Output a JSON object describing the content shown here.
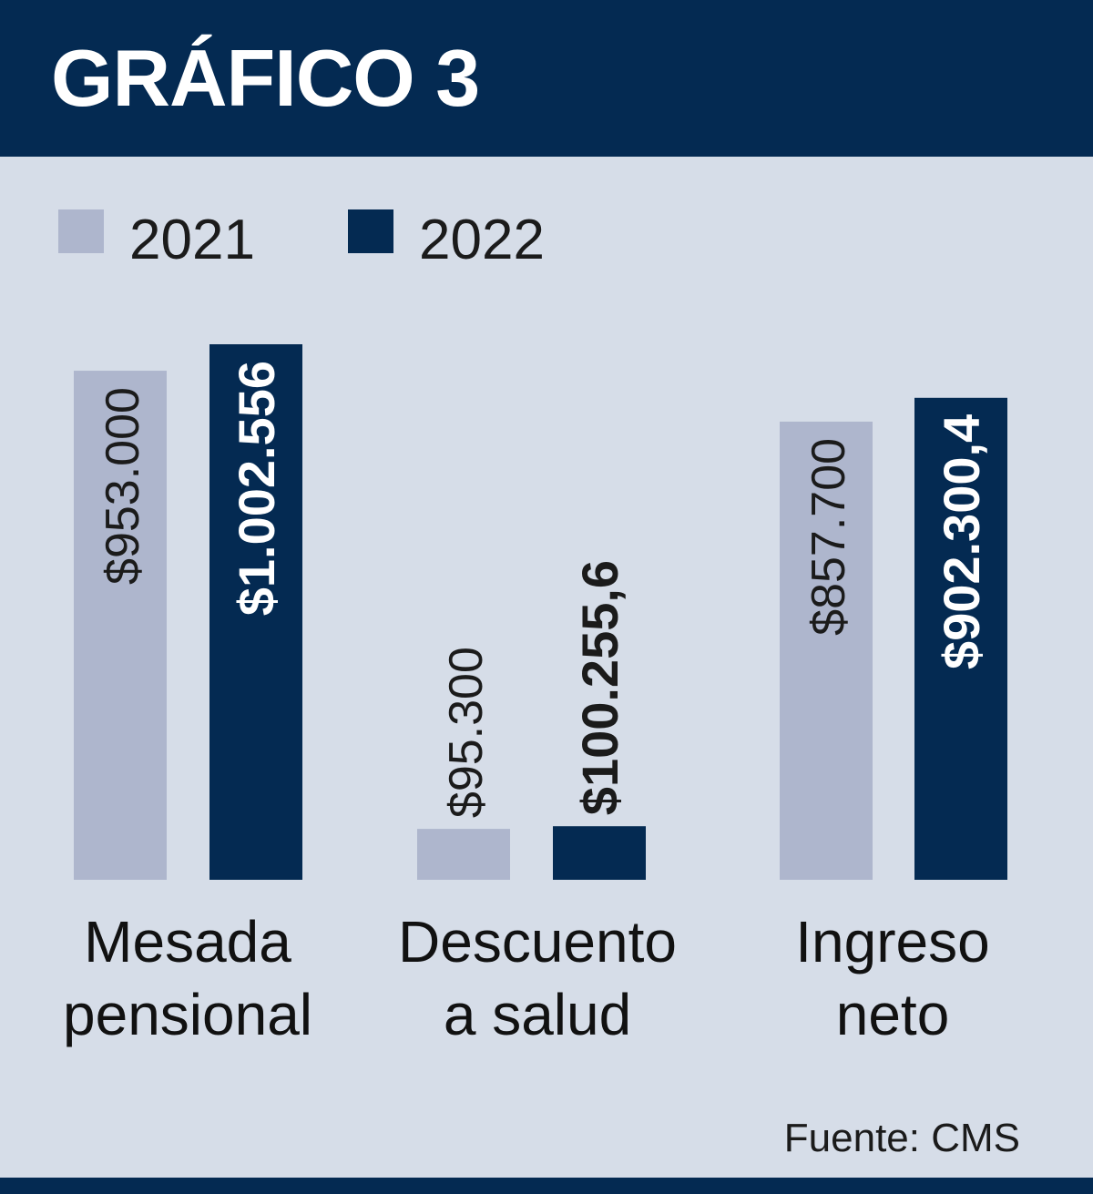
{
  "header": {
    "title": "GRÁFICO 3"
  },
  "source": "Fuente: CMS",
  "colors": {
    "background": "#d6dde8",
    "header": "#042a52",
    "series_2021": "#aeb6cd",
    "series_2022": "#042a52"
  },
  "chart_data": {
    "type": "bar",
    "title": "",
    "xlabel": "",
    "ylabel": "",
    "grid": false,
    "legend": "top-left",
    "categories": [
      [
        "Mesada",
        "pensional"
      ],
      [
        "Descuento",
        "a salud"
      ],
      [
        "Ingreso",
        "neto"
      ]
    ],
    "ylim": [
      0,
      1002556
    ],
    "series": [
      {
        "name": "2021",
        "color": "#aeb6cd",
        "values": [
          953000,
          95300,
          857700
        ],
        "labels": [
          "$953.000",
          "$95.300",
          "$857.700"
        ]
      },
      {
        "name": "2022",
        "color": "#042a52",
        "values": [
          1002556,
          100255.6,
          902300.4
        ],
        "labels": [
          "$1.002.556",
          "$100.255,6",
          "$902.300,4"
        ]
      }
    ]
  }
}
